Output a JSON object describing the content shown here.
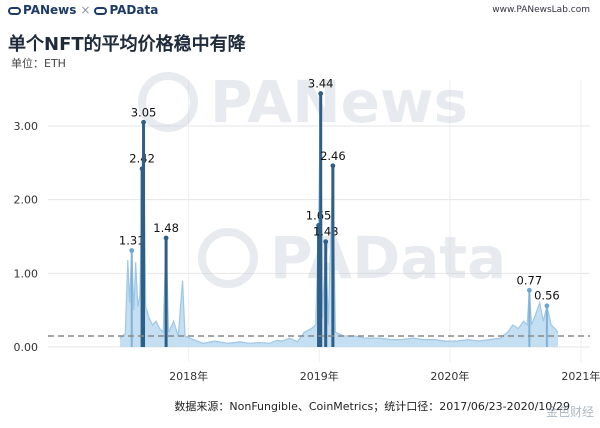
{
  "header": {
    "brand_left": "PANews",
    "brand_sep": "×",
    "brand_right": "PAData",
    "site": "www.PANewsLab.com"
  },
  "title": "单个NFT的平均价格稳中有降",
  "unit": "单位：ETH",
  "watermark": {
    "top": "PANews",
    "bottom": "PAData"
  },
  "footer": "数据来源：NonFungible、CoinMetrics；统计口径：2017/06/23-2020/10/29",
  "corner_logo": "金色财经",
  "colors": {
    "line": "#9fc7e6",
    "fill": "#b9d9ef",
    "spike": "#2f5f86",
    "dashed": "#888888",
    "grid": "#e6e6e6"
  },
  "chart_data": {
    "type": "area",
    "title": "单个NFT的平均价格稳中有降",
    "ylabel": "单位：ETH",
    "ylim": [
      0,
      3.5
    ],
    "y_ticks": [
      0.0,
      1.0,
      2.0,
      3.0
    ],
    "y_tick_labels": [
      "0.00",
      "1.00",
      "2.00",
      "3.00"
    ],
    "x_ticks": [
      "2018年",
      "2019年",
      "2020年",
      "2021年"
    ],
    "x_range": [
      "2017-06-23",
      "2020-10-29"
    ],
    "average_line": 0.15,
    "grid": "horizontal",
    "annotations": [
      {
        "date": "2017-07-26",
        "label": "1.31",
        "value": 1.31
      },
      {
        "date": "2017-08-24",
        "label": "2.42",
        "value": 2.42
      },
      {
        "date": "2017-08-28",
        "label": "3.05",
        "value": 3.05
      },
      {
        "date": "2017-10-30",
        "label": "1.48",
        "value": 1.48
      },
      {
        "date": "2018-12-30",
        "label": "1.65",
        "value": 1.65
      },
      {
        "date": "2019-01-05",
        "label": "3.44",
        "value": 3.44
      },
      {
        "date": "2019-01-19",
        "label": "1.43",
        "value": 1.43
      },
      {
        "date": "2019-02-08",
        "label": "2.46",
        "value": 2.46
      },
      {
        "date": "2020-08-10",
        "label": "0.77",
        "value": 0.77
      },
      {
        "date": "2020-09-28",
        "label": "0.56",
        "value": 0.56
      }
    ],
    "series": [
      {
        "points": [
          [
            "2017-06-23",
            0.12
          ],
          [
            "2017-07-08",
            0.18
          ],
          [
            "2017-07-15",
            1.18
          ],
          [
            "2017-07-20",
            0.6
          ],
          [
            "2017-07-26",
            1.31
          ],
          [
            "2017-08-01",
            0.5
          ],
          [
            "2017-08-06",
            1.15
          ],
          [
            "2017-08-12",
            0.55
          ],
          [
            "2017-08-18",
            0.7
          ],
          [
            "2017-08-24",
            2.42
          ],
          [
            "2017-08-28",
            3.05
          ],
          [
            "2017-09-03",
            0.55
          ],
          [
            "2017-09-12",
            0.4
          ],
          [
            "2017-09-22",
            0.3
          ],
          [
            "2017-10-02",
            0.35
          ],
          [
            "2017-10-12",
            0.25
          ],
          [
            "2017-10-22",
            0.2
          ],
          [
            "2017-10-30",
            1.48
          ],
          [
            "2017-11-06",
            0.2
          ],
          [
            "2017-11-20",
            0.35
          ],
          [
            "2017-12-03",
            0.15
          ],
          [
            "2017-12-15",
            0.9
          ],
          [
            "2017-12-22",
            0.15
          ],
          [
            "2018-01-15",
            0.1
          ],
          [
            "2018-02-10",
            0.05
          ],
          [
            "2018-03-15",
            0.08
          ],
          [
            "2018-04-20",
            0.05
          ],
          [
            "2018-05-25",
            0.07
          ],
          [
            "2018-06-20",
            0.05
          ],
          [
            "2018-07-20",
            0.06
          ],
          [
            "2018-08-15",
            0.05
          ],
          [
            "2018-09-05",
            0.09
          ],
          [
            "2018-09-20",
            0.08
          ],
          [
            "2018-10-10",
            0.12
          ],
          [
            "2018-11-01",
            0.07
          ],
          [
            "2018-11-20",
            0.2
          ],
          [
            "2018-12-10",
            0.25
          ],
          [
            "2018-12-22",
            0.3
          ],
          [
            "2018-12-30",
            1.65
          ],
          [
            "2019-01-05",
            3.44
          ],
          [
            "2019-01-10",
            0.4
          ],
          [
            "2019-01-19",
            1.43
          ],
          [
            "2019-01-26",
            0.3
          ],
          [
            "2019-02-08",
            2.46
          ],
          [
            "2019-02-15",
            0.2
          ],
          [
            "2019-03-10",
            0.15
          ],
          [
            "2019-04-10",
            0.15
          ],
          [
            "2019-05-10",
            0.12
          ],
          [
            "2019-06-20",
            0.12
          ],
          [
            "2019-07-20",
            0.1
          ],
          [
            "2019-08-20",
            0.1
          ],
          [
            "2019-09-20",
            0.12
          ],
          [
            "2019-10-20",
            0.1
          ],
          [
            "2019-11-20",
            0.1
          ],
          [
            "2019-12-20",
            0.08
          ],
          [
            "2020-01-20",
            0.08
          ],
          [
            "2020-02-20",
            0.1
          ],
          [
            "2020-03-20",
            0.08
          ],
          [
            "2020-04-20",
            0.1
          ],
          [
            "2020-05-20",
            0.12
          ],
          [
            "2020-06-10",
            0.2
          ],
          [
            "2020-06-25",
            0.3
          ],
          [
            "2020-07-10",
            0.25
          ],
          [
            "2020-07-25",
            0.35
          ],
          [
            "2020-08-04",
            0.3
          ],
          [
            "2020-08-10",
            0.77
          ],
          [
            "2020-08-16",
            0.3
          ],
          [
            "2020-08-28",
            0.45
          ],
          [
            "2020-09-08",
            0.6
          ],
          [
            "2020-09-18",
            0.35
          ],
          [
            "2020-09-28",
            0.56
          ],
          [
            "2020-10-10",
            0.3
          ],
          [
            "2020-10-20",
            0.25
          ],
          [
            "2020-10-29",
            0.2
          ]
        ]
      }
    ]
  }
}
